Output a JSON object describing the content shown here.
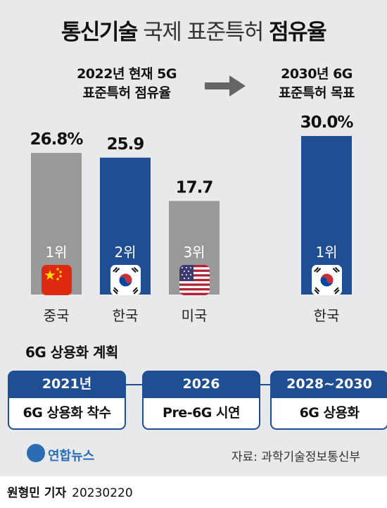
{
  "title": {
    "bold1": "통신기술",
    "light": "국제 표준특허",
    "bold2": "점유율"
  },
  "left_heading": {
    "line1": "2022년 현재 5G",
    "line2": "표준특허 점유율"
  },
  "right_heading": {
    "line1": "2030년 6G",
    "line2": "표준특허 목표"
  },
  "chart_data": {
    "type": "bar",
    "categories": [
      "중국",
      "한국",
      "미국",
      "한국"
    ],
    "values": [
      26.8,
      25.9,
      17.7,
      30.0
    ],
    "value_labels": [
      "26.8%",
      "25.9",
      "17.7",
      "30.0%"
    ],
    "ranks": [
      "1위",
      "2위",
      "3위",
      "1위"
    ],
    "flags": [
      "china-flag",
      "korea-flag",
      "usa-flag",
      "korea-flag"
    ],
    "colors": [
      "#999999",
      "#1f4e93",
      "#999999",
      "#1f4e93"
    ],
    "unit": "%",
    "ylim": [
      0,
      30
    ]
  },
  "plan": {
    "title": "6G 상용화 계획",
    "steps": [
      {
        "year": "2021년",
        "text": "6G 상용화 착수"
      },
      {
        "year": "2026",
        "text": "Pre-6G 시연"
      },
      {
        "year": "2028~2030",
        "text": "6G 상용화"
      }
    ]
  },
  "footer": {
    "logo_text": "연합뉴스",
    "source": "자료: 과학기술정보통신부"
  },
  "byline": {
    "name": "원형민 기자",
    "date": "20230220"
  },
  "colors": {
    "blue": "#1f4e93",
    "gray": "#999999",
    "panel": "#e8e9eb"
  }
}
